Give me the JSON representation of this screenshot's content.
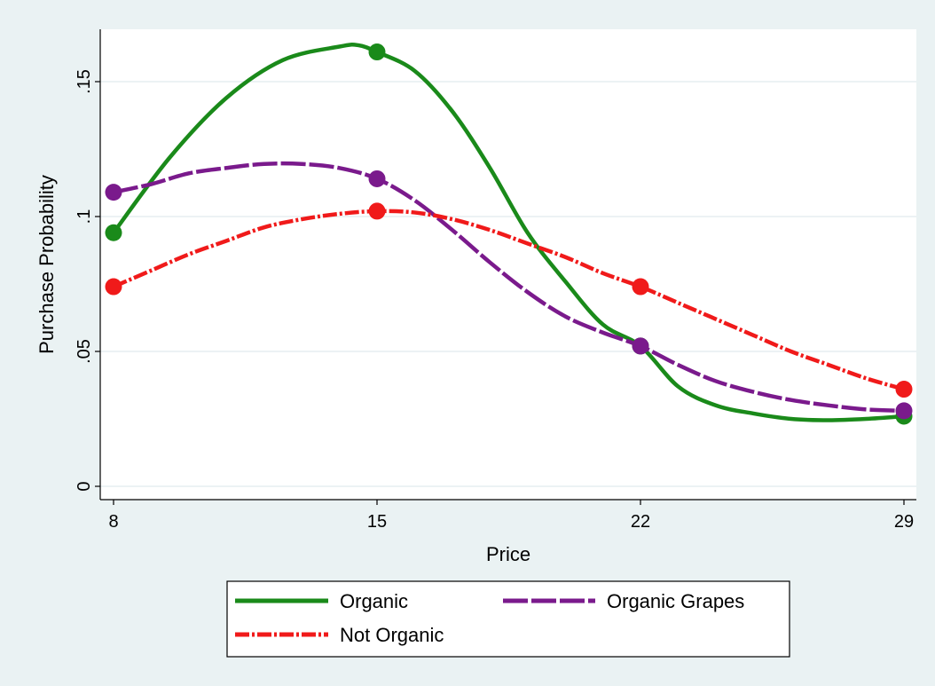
{
  "chart_data": {
    "type": "line",
    "xlabel": "Price",
    "ylabel": "Purchase Probability",
    "xlim": [
      8,
      29
    ],
    "ylim": [
      0,
      0.17
    ],
    "x_ticks": [
      {
        "value": 8,
        "label": "8"
      },
      {
        "value": 15,
        "label": "15"
      },
      {
        "value": 22,
        "label": "22"
      },
      {
        "value": 29,
        "label": "29"
      }
    ],
    "y_ticks": [
      {
        "value": 0,
        "label": "0"
      },
      {
        "value": 0.05,
        "label": ".05"
      },
      {
        "value": 0.1,
        "label": ".1"
      },
      {
        "value": 0.15,
        "label": ".15"
      }
    ],
    "grid": "horizontal",
    "legend_position": "bottom",
    "series": [
      {
        "name": "Organic",
        "color": "#1a8a1a",
        "style": "solid",
        "markers": [
          [
            8,
            0.094
          ],
          [
            15,
            0.161
          ],
          [
            22,
            0.052
          ],
          [
            29,
            0.026
          ]
        ],
        "curve": [
          [
            8,
            0.094
          ],
          [
            9.5,
            0.122
          ],
          [
            11,
            0.144
          ],
          [
            12.5,
            0.158
          ],
          [
            14,
            0.163
          ],
          [
            14.5,
            0.1635
          ],
          [
            15,
            0.161
          ],
          [
            16,
            0.154
          ],
          [
            17,
            0.139
          ],
          [
            18,
            0.118
          ],
          [
            19,
            0.094
          ],
          [
            20,
            0.076
          ],
          [
            21,
            0.06
          ],
          [
            22,
            0.052
          ],
          [
            23,
            0.037
          ],
          [
            24,
            0.03
          ],
          [
            25,
            0.027
          ],
          [
            26,
            0.025
          ],
          [
            27,
            0.0245
          ],
          [
            28,
            0.025
          ],
          [
            29,
            0.026
          ]
        ]
      },
      {
        "name": "Organic Grapes",
        "color": "#7a1a8c",
        "style": "longdash",
        "markers": [
          [
            8,
            0.109
          ],
          [
            15,
            0.114
          ],
          [
            22,
            0.052
          ],
          [
            29,
            0.028
          ]
        ],
        "curve": [
          [
            8,
            0.109
          ],
          [
            9,
            0.112
          ],
          [
            10,
            0.116
          ],
          [
            11,
            0.118
          ],
          [
            12,
            0.1195
          ],
          [
            13,
            0.1195
          ],
          [
            14,
            0.118
          ],
          [
            15,
            0.114
          ],
          [
            16,
            0.106
          ],
          [
            17,
            0.095
          ],
          [
            18,
            0.083
          ],
          [
            19,
            0.072
          ],
          [
            20,
            0.063
          ],
          [
            21,
            0.057
          ],
          [
            22,
            0.052
          ],
          [
            23,
            0.045
          ],
          [
            24,
            0.039
          ],
          [
            25,
            0.035
          ],
          [
            26,
            0.032
          ],
          [
            27,
            0.03
          ],
          [
            28,
            0.0285
          ],
          [
            29,
            0.028
          ]
        ]
      },
      {
        "name": "Not Organic",
        "color": "#f01a1a",
        "style": "dashdot",
        "markers": [
          [
            8,
            0.074
          ],
          [
            15,
            0.102
          ],
          [
            22,
            0.074
          ],
          [
            29,
            0.036
          ]
        ],
        "curve": [
          [
            8,
            0.074
          ],
          [
            9,
            0.08
          ],
          [
            10,
            0.086
          ],
          [
            11,
            0.091
          ],
          [
            12,
            0.096
          ],
          [
            13,
            0.099
          ],
          [
            14,
            0.101
          ],
          [
            15,
            0.102
          ],
          [
            16,
            0.1015
          ],
          [
            17,
            0.099
          ],
          [
            18,
            0.095
          ],
          [
            19,
            0.09
          ],
          [
            20,
            0.085
          ],
          [
            21,
            0.079
          ],
          [
            22,
            0.074
          ],
          [
            23,
            0.068
          ],
          [
            24,
            0.062
          ],
          [
            25,
            0.056
          ],
          [
            26,
            0.05
          ],
          [
            27,
            0.045
          ],
          [
            28,
            0.04
          ],
          [
            29,
            0.036
          ]
        ]
      }
    ]
  }
}
